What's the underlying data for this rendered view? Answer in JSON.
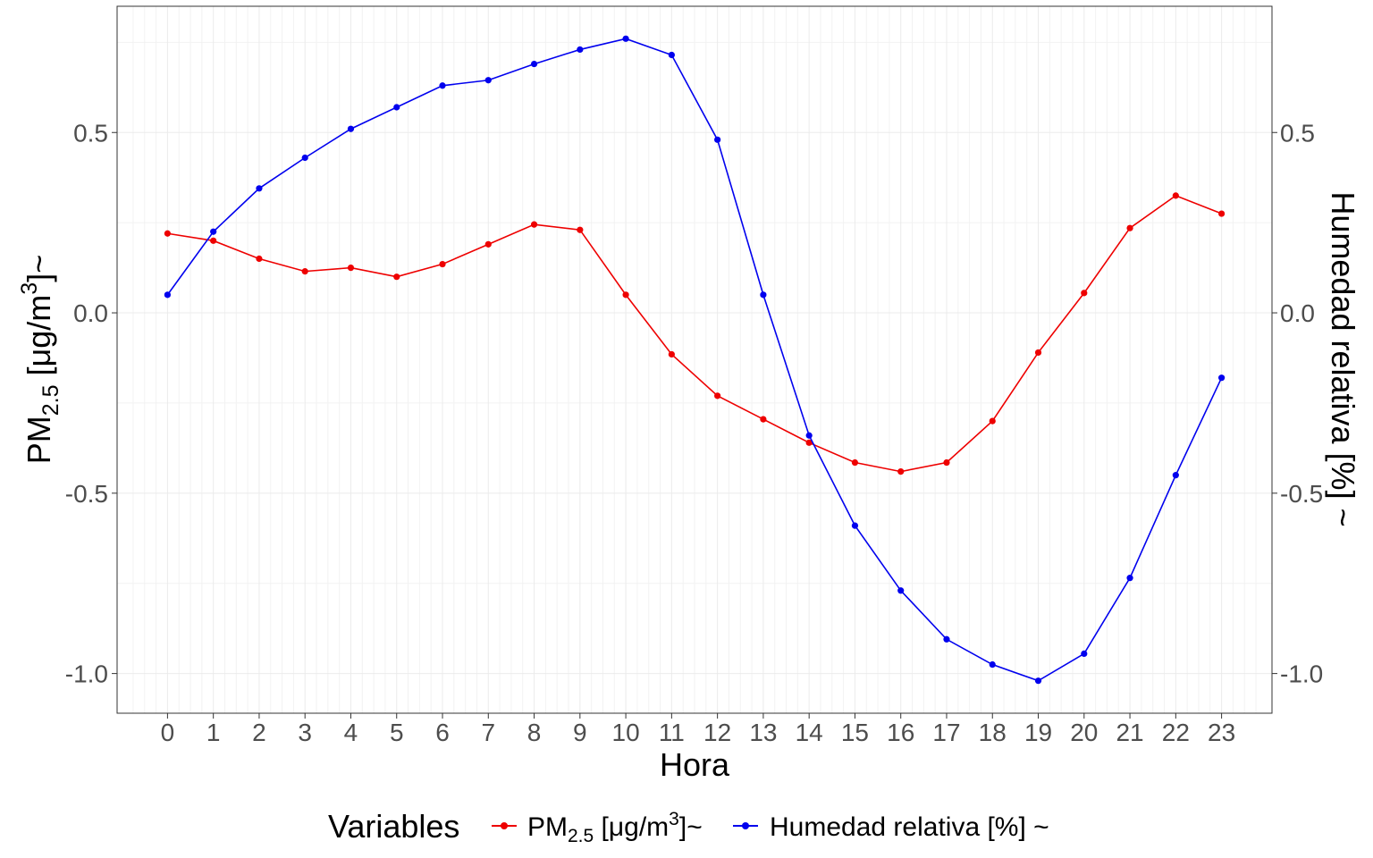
{
  "chart_data": {
    "type": "line",
    "xlabel": "Hora",
    "ylabel_left": {
      "base": "PM",
      "sub": "2.5",
      "mid": " [μg/m",
      "sup": "3",
      "end": "]~"
    },
    "ylabel_right": "Humedad relativa [%] ~",
    "x": [
      0,
      1,
      2,
      3,
      4,
      5,
      6,
      7,
      8,
      9,
      10,
      11,
      12,
      13,
      14,
      15,
      16,
      17,
      18,
      19,
      20,
      21,
      22,
      23
    ],
    "x_tick_labels": [
      "0",
      "1",
      "2",
      "3",
      "4",
      "5",
      "6",
      "7",
      "8",
      "9",
      "10",
      "11",
      "12",
      "13",
      "14",
      "15",
      "16",
      "17",
      "18",
      "19",
      "20",
      "21",
      "22",
      "23"
    ],
    "xlim": [
      -1.1,
      24.1
    ],
    "ylim": [
      -1.11,
      0.85
    ],
    "y_ticks": [
      0.5,
      0.0,
      -0.5,
      -1.0
    ],
    "y_tick_labels_left": [
      "0.5",
      "0.0",
      "-0.5",
      "-1.0"
    ],
    "y_tick_labels_right": [
      "0.5",
      "0.0",
      "-0.5",
      "-1.0"
    ],
    "grid": true,
    "legend": {
      "title": "Variables",
      "placement": "bottom",
      "pm_label": {
        "base": "PM",
        "sub": "2.5",
        "mid": " [μg/m",
        "sup": "3",
        "end": "]~"
      },
      "hum_label": "Humedad relativa [%] ~"
    },
    "series": [
      {
        "key": "pm25",
        "color": "#ee0000",
        "values": [
          0.22,
          0.2,
          0.15,
          0.115,
          0.125,
          0.1,
          0.135,
          0.19,
          0.245,
          0.23,
          0.05,
          -0.115,
          -0.23,
          -0.295,
          -0.36,
          -0.415,
          -0.44,
          -0.415,
          -0.3,
          -0.11,
          0.055,
          0.235,
          0.325,
          0.275
        ]
      },
      {
        "key": "humedad",
        "color": "#0000ee",
        "values": [
          0.05,
          0.225,
          0.345,
          0.43,
          0.51,
          0.57,
          0.63,
          0.645,
          0.69,
          0.73,
          0.76,
          0.715,
          0.48,
          0.05,
          -0.34,
          -0.59,
          -0.77,
          -0.905,
          -0.975,
          -1.02,
          -0.945,
          -0.735,
          -0.45,
          -0.18
        ]
      }
    ]
  }
}
